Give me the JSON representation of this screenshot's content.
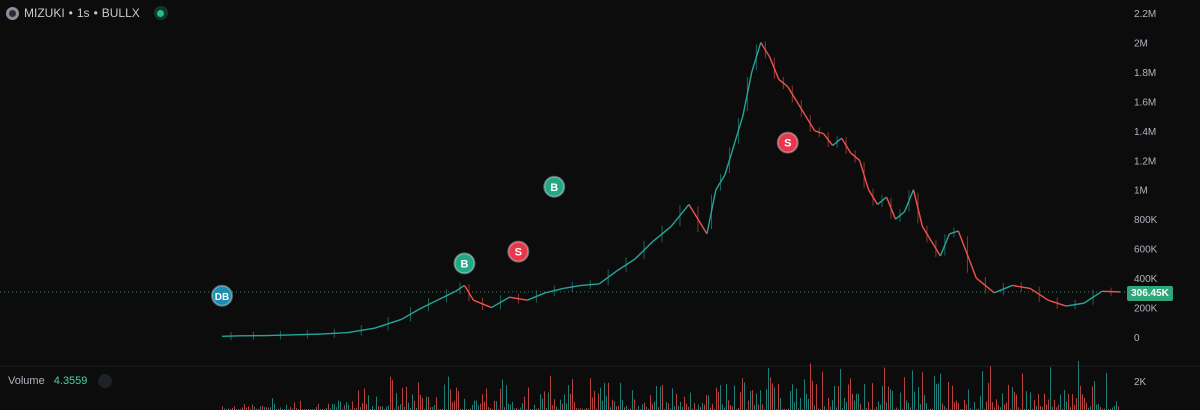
{
  "header": {
    "symbol": "MIZUKI",
    "sep1": "•",
    "interval": "1s",
    "sep2": "•",
    "exchange": "BULLX"
  },
  "volume_panel": {
    "label": "Volume",
    "value": "4.3559",
    "axis_label": "2K"
  },
  "current_price_label": "306.45K",
  "colors": {
    "up": "#26a69a",
    "down": "#ef5350",
    "buy_marker": "#22a884",
    "sell_marker": "#e5384d",
    "dev_buy_marker": "#1a8db0",
    "price_tag": "#2fa57a"
  },
  "icons": {
    "logo": "token-logo-icon",
    "live": "live-status-icon",
    "visibility": "eye-icon"
  },
  "chart_data": {
    "type": "line",
    "ylim": [
      0,
      2200000
    ],
    "y_ticks": [
      "2.2M",
      "2M",
      "1.8M",
      "1.6M",
      "1.4M",
      "1.2M",
      "1M",
      "800K",
      "600K",
      "400K",
      "200K",
      "0"
    ],
    "y_tick_values": [
      2200000,
      2000000,
      1800000,
      1600000,
      1400000,
      1200000,
      1000000,
      800000,
      600000,
      400000,
      200000,
      0
    ],
    "current_price": 306450,
    "x": [
      0.0,
      0.02,
      0.05,
      0.08,
      0.11,
      0.14,
      0.17,
      0.2,
      0.22,
      0.24,
      0.26,
      0.27,
      0.28,
      0.3,
      0.32,
      0.34,
      0.36,
      0.38,
      0.4,
      0.42,
      0.44,
      0.46,
      0.48,
      0.5,
      0.52,
      0.54,
      0.55,
      0.56,
      0.57,
      0.58,
      0.59,
      0.6,
      0.61,
      0.62,
      0.63,
      0.64,
      0.65,
      0.66,
      0.67,
      0.68,
      0.69,
      0.7,
      0.71,
      0.72,
      0.73,
      0.74,
      0.75,
      0.76,
      0.77,
      0.78,
      0.79,
      0.8,
      0.81,
      0.82,
      0.84,
      0.86,
      0.88,
      0.9,
      0.92,
      0.94,
      0.96,
      0.98,
      1.0
    ],
    "values": [
      5000,
      8000,
      10000,
      15000,
      20000,
      30000,
      60000,
      120000,
      190000,
      250000,
      310000,
      350000,
      250000,
      200000,
      270000,
      250000,
      300000,
      330000,
      350000,
      360000,
      450000,
      530000,
      650000,
      750000,
      900000,
      700000,
      1000000,
      1100000,
      1300000,
      1500000,
      1800000,
      2000000,
      1900000,
      1750000,
      1700000,
      1600000,
      1500000,
      1400000,
      1380000,
      1300000,
      1350000,
      1250000,
      1200000,
      1000000,
      900000,
      950000,
      800000,
      850000,
      1000000,
      750000,
      650000,
      550000,
      700000,
      720000,
      400000,
      300000,
      350000,
      330000,
      250000,
      210000,
      230000,
      310000,
      306450
    ],
    "markers": [
      {
        "label": "DB",
        "x": 0.0,
        "value": 280000
      },
      {
        "label": "B",
        "x": 0.27,
        "value": 500000
      },
      {
        "label": "S",
        "x": 0.33,
        "value": 580000
      },
      {
        "label": "B",
        "x": 0.37,
        "value": 1020000
      },
      {
        "label": "S",
        "x": 0.63,
        "value": 1320000
      }
    ],
    "volume_ylim": [
      0,
      2000
    ]
  }
}
